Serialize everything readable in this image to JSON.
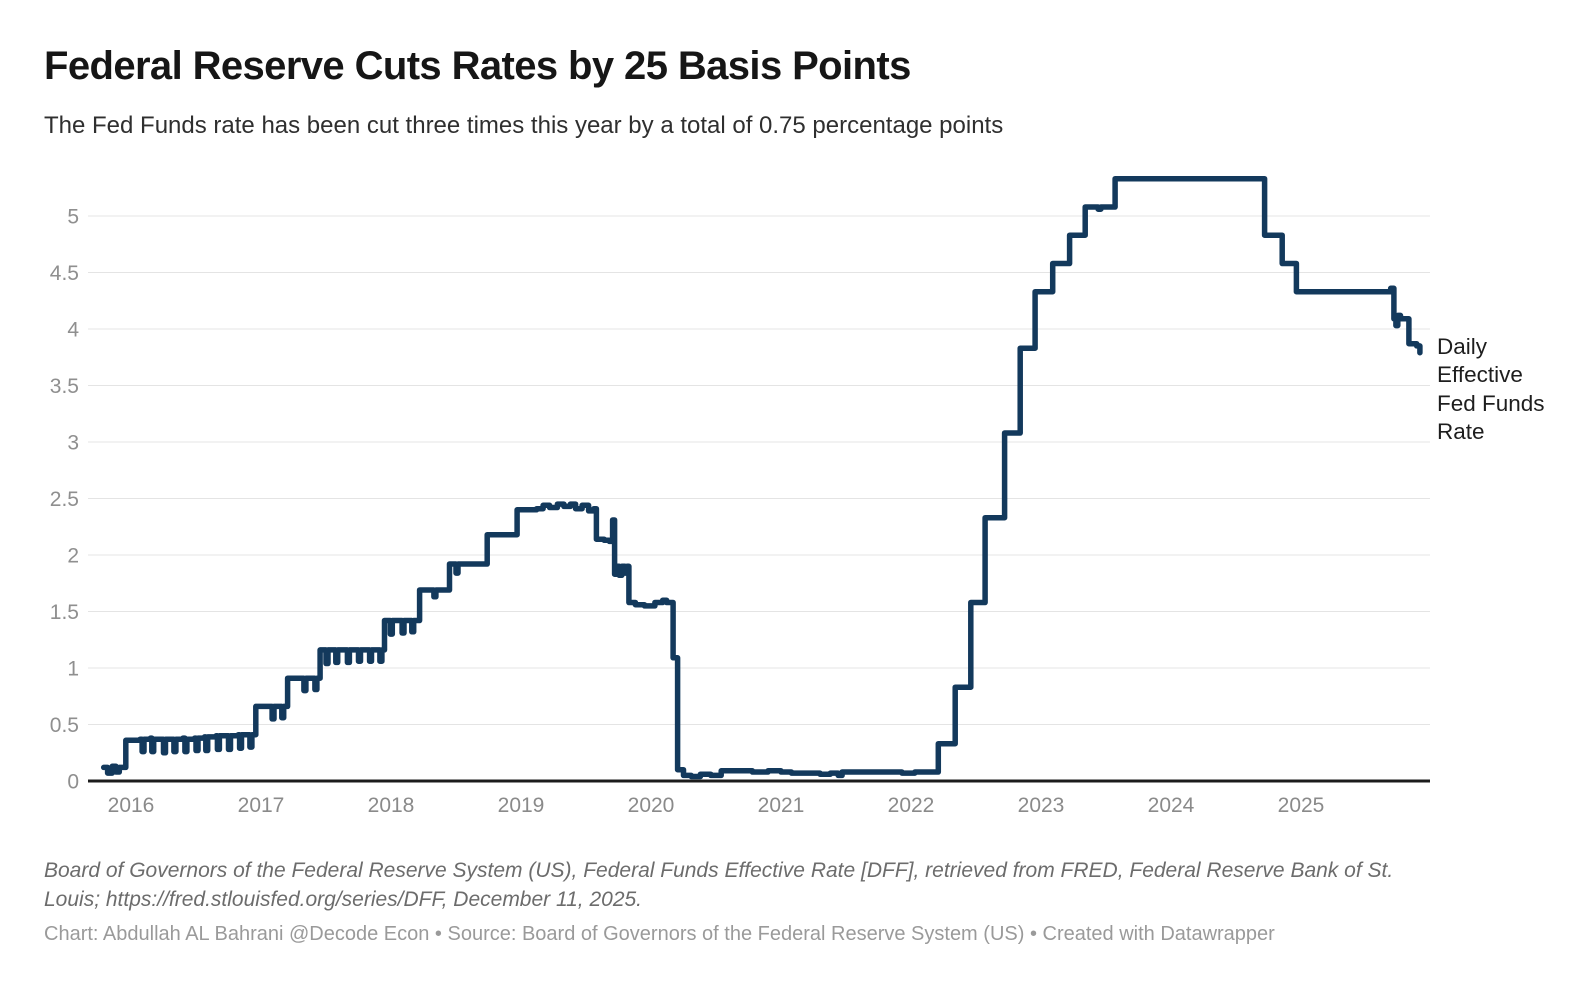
{
  "header": {
    "title": "Federal Reserve Cuts Rates by 25 Basis Points",
    "subtitle": "The Fed Funds rate has been cut three times this year by a total of 0.75 percentage points"
  },
  "chart_data": {
    "type": "line",
    "title": "Federal Reserve Cuts Rates by 25 Basis Points",
    "subtitle": "The Fed Funds rate has been cut three times this year by a total of 0.75 percentage points",
    "series_label": "Daily Effective Fed Funds Rate",
    "xlabel": "",
    "ylabel": "",
    "x_ticks": [
      2016,
      2017,
      2018,
      2019,
      2020,
      2021,
      2022,
      2023,
      2024,
      2025
    ],
    "y_ticks": [
      0,
      0.5,
      1,
      1.5,
      2,
      2.5,
      3,
      3.5,
      4,
      4.5,
      5
    ],
    "xlim": [
      2015.78,
      2025.97
    ],
    "ylim": [
      0,
      5.4
    ],
    "grid": true,
    "legend_position": "right-of-line-end",
    "line_color": "#13395c",
    "gridline_color": "#e4e4e4",
    "axis_color": "#1c1c1c",
    "tick_label_color": "#8f8f8f",
    "interpolation": "step-after",
    "points": [
      [
        2015.79,
        0.12
      ],
      [
        2015.82,
        0.07
      ],
      [
        2015.855,
        0.13
      ],
      [
        2015.885,
        0.08
      ],
      [
        2015.91,
        0.12
      ],
      [
        2015.96,
        0.36
      ],
      [
        2016.07,
        0.37
      ],
      [
        2016.085,
        0.26
      ],
      [
        2016.1,
        0.37
      ],
      [
        2016.15,
        0.38
      ],
      [
        2016.16,
        0.26
      ],
      [
        2016.175,
        0.37
      ],
      [
        2016.24,
        0.37
      ],
      [
        2016.25,
        0.25
      ],
      [
        2016.265,
        0.37
      ],
      [
        2016.32,
        0.37
      ],
      [
        2016.33,
        0.26
      ],
      [
        2016.345,
        0.37
      ],
      [
        2016.4,
        0.38
      ],
      [
        2016.415,
        0.26
      ],
      [
        2016.43,
        0.37
      ],
      [
        2016.49,
        0.38
      ],
      [
        2016.5,
        0.27
      ],
      [
        2016.515,
        0.38
      ],
      [
        2016.565,
        0.39
      ],
      [
        2016.575,
        0.27
      ],
      [
        2016.59,
        0.39
      ],
      [
        2016.655,
        0.4
      ],
      [
        2016.665,
        0.28
      ],
      [
        2016.68,
        0.4
      ],
      [
        2016.74,
        0.4
      ],
      [
        2016.75,
        0.28
      ],
      [
        2016.765,
        0.4
      ],
      [
        2016.825,
        0.41
      ],
      [
        2016.835,
        0.29
      ],
      [
        2016.85,
        0.41
      ],
      [
        2016.905,
        0.41
      ],
      [
        2016.915,
        0.3
      ],
      [
        2016.93,
        0.41
      ],
      [
        2016.96,
        0.66
      ],
      [
        2017.075,
        0.66
      ],
      [
        2017.085,
        0.55
      ],
      [
        2017.1,
        0.66
      ],
      [
        2017.15,
        0.66
      ],
      [
        2017.16,
        0.56
      ],
      [
        2017.175,
        0.66
      ],
      [
        2017.205,
        0.91
      ],
      [
        2017.32,
        0.91
      ],
      [
        2017.33,
        0.8
      ],
      [
        2017.345,
        0.91
      ],
      [
        2017.405,
        0.91
      ],
      [
        2017.415,
        0.81
      ],
      [
        2017.43,
        0.91
      ],
      [
        2017.455,
        1.16
      ],
      [
        2017.49,
        1.16
      ],
      [
        2017.5,
        1.04
      ],
      [
        2017.515,
        1.16
      ],
      [
        2017.565,
        1.16
      ],
      [
        2017.575,
        1.05
      ],
      [
        2017.59,
        1.16
      ],
      [
        2017.655,
        1.16
      ],
      [
        2017.665,
        1.05
      ],
      [
        2017.68,
        1.16
      ],
      [
        2017.74,
        1.16
      ],
      [
        2017.75,
        1.06
      ],
      [
        2017.765,
        1.16
      ],
      [
        2017.825,
        1.16
      ],
      [
        2017.835,
        1.06
      ],
      [
        2017.85,
        1.16
      ],
      [
        2017.905,
        1.16
      ],
      [
        2017.915,
        1.06
      ],
      [
        2017.93,
        1.16
      ],
      [
        2017.95,
        1.42
      ],
      [
        2017.985,
        1.42
      ],
      [
        2017.995,
        1.3
      ],
      [
        2018.01,
        1.42
      ],
      [
        2018.075,
        1.42
      ],
      [
        2018.085,
        1.31
      ],
      [
        2018.1,
        1.42
      ],
      [
        2018.15,
        1.42
      ],
      [
        2018.16,
        1.32
      ],
      [
        2018.175,
        1.42
      ],
      [
        2018.22,
        1.69
      ],
      [
        2018.32,
        1.69
      ],
      [
        2018.33,
        1.63
      ],
      [
        2018.345,
        1.69
      ],
      [
        2018.45,
        1.92
      ],
      [
        2018.49,
        1.92
      ],
      [
        2018.5,
        1.84
      ],
      [
        2018.515,
        1.92
      ],
      [
        2018.74,
        2.18
      ],
      [
        2018.97,
        2.4
      ],
      [
        2019.12,
        2.41
      ],
      [
        2019.17,
        2.44
      ],
      [
        2019.22,
        2.42
      ],
      [
        2019.28,
        2.45
      ],
      [
        2019.33,
        2.43
      ],
      [
        2019.38,
        2.45
      ],
      [
        2019.42,
        2.41
      ],
      [
        2019.47,
        2.44
      ],
      [
        2019.52,
        2.39
      ],
      [
        2019.56,
        2.41
      ],
      [
        2019.58,
        2.14
      ],
      [
        2019.64,
        2.13
      ],
      [
        2019.68,
        2.12
      ],
      [
        2019.705,
        2.31
      ],
      [
        2019.72,
        1.83
      ],
      [
        2019.735,
        1.9
      ],
      [
        2019.755,
        1.82
      ],
      [
        2019.775,
        1.9
      ],
      [
        2019.8,
        1.84
      ],
      [
        2019.815,
        1.9
      ],
      [
        2019.83,
        1.58
      ],
      [
        2019.88,
        1.56
      ],
      [
        2019.95,
        1.55
      ],
      [
        2020.03,
        1.58
      ],
      [
        2020.09,
        1.6
      ],
      [
        2020.12,
        1.58
      ],
      [
        2020.17,
        1.09
      ],
      [
        2020.205,
        0.1
      ],
      [
        2020.25,
        0.05
      ],
      [
        2020.31,
        0.04
      ],
      [
        2020.38,
        0.06
      ],
      [
        2020.46,
        0.05
      ],
      [
        2020.54,
        0.09
      ],
      [
        2020.68,
        0.09
      ],
      [
        2020.78,
        0.08
      ],
      [
        2020.9,
        0.09
      ],
      [
        2021.0,
        0.08
      ],
      [
        2021.08,
        0.07
      ],
      [
        2021.2,
        0.07
      ],
      [
        2021.3,
        0.06
      ],
      [
        2021.38,
        0.07
      ],
      [
        2021.44,
        0.05
      ],
      [
        2021.47,
        0.08
      ],
      [
        2021.55,
        0.08
      ],
      [
        2021.7,
        0.08
      ],
      [
        2021.83,
        0.08
      ],
      [
        2021.93,
        0.07
      ],
      [
        2022.03,
        0.08
      ],
      [
        2022.13,
        0.08
      ],
      [
        2022.21,
        0.33
      ],
      [
        2022.34,
        0.83
      ],
      [
        2022.46,
        1.58
      ],
      [
        2022.57,
        2.33
      ],
      [
        2022.72,
        3.08
      ],
      [
        2022.84,
        3.83
      ],
      [
        2022.955,
        4.33
      ],
      [
        2023.09,
        4.58
      ],
      [
        2023.22,
        4.83
      ],
      [
        2023.34,
        5.08
      ],
      [
        2023.44,
        5.06
      ],
      [
        2023.46,
        5.08
      ],
      [
        2023.57,
        5.33
      ],
      [
        2024.72,
        4.83
      ],
      [
        2024.855,
        4.58
      ],
      [
        2024.965,
        4.33
      ],
      [
        2025.55,
        4.33
      ],
      [
        2025.69,
        4.36
      ],
      [
        2025.715,
        4.09
      ],
      [
        2025.73,
        4.03
      ],
      [
        2025.745,
        4.12
      ],
      [
        2025.765,
        4.09
      ],
      [
        2025.83,
        3.87
      ],
      [
        2025.89,
        3.85
      ],
      [
        2025.915,
        3.79
      ]
    ]
  },
  "footer": {
    "source_note_line1": "Board of Governors of the Federal Reserve System (US), Federal Funds Effective Rate [DFF], retrieved from FRED, Federal Reserve Bank of St.",
    "source_note_line2": "Louis; https://fred.stlouisfed.org/series/DFF, December 11, 2025.",
    "credit": "Chart: Abdullah AL Bahrani @Decode Econ • Source: Board of Governors of the Federal Reserve System (US)  • Created with Datawrapper"
  }
}
